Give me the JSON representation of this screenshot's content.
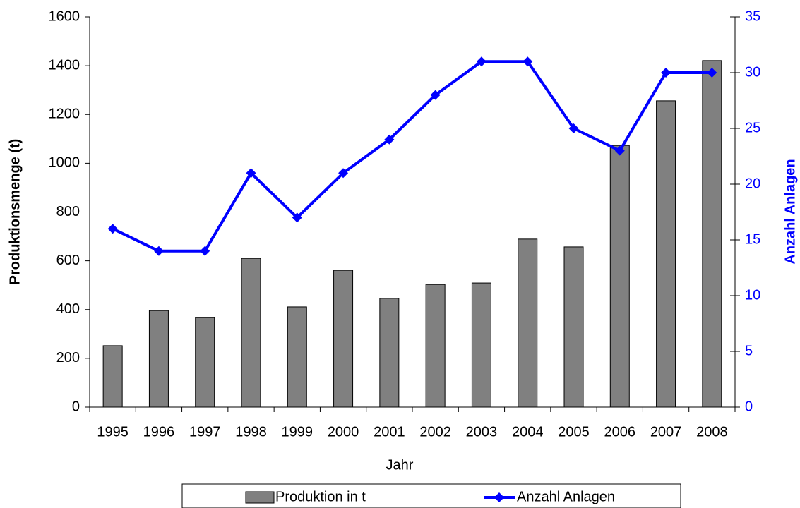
{
  "chart_data": {
    "type": "bar",
    "x_label": "Jahr",
    "y_label": "Produktionsmenge (t)",
    "y2_label": "Anzahl Anlagen",
    "categories": [
      "1995",
      "1996",
      "1997",
      "1998",
      "1999",
      "2000",
      "2001",
      "2002",
      "2003",
      "2004",
      "2005",
      "2006",
      "2007",
      "2008"
    ],
    "series": [
      {
        "name": "Produktion in t",
        "type": "bar",
        "color": "#808080",
        "values": [
          252,
          396,
          367,
          610,
          411,
          561,
          446,
          503,
          509,
          689,
          657,
          1073,
          1256,
          1421
        ]
      },
      {
        "name": "Anzahl Anlagen",
        "type": "line",
        "axis": "y2",
        "color": "#0000ff",
        "values": [
          16,
          14,
          14,
          21,
          17,
          21,
          24,
          28,
          31,
          31,
          25,
          23,
          30,
          30
        ]
      }
    ],
    "ylim": [
      0,
      1600
    ],
    "yticks": [
      0,
      200,
      400,
      600,
      800,
      1000,
      1200,
      1400,
      1600
    ],
    "y2lim": [
      0,
      35
    ],
    "y2ticks": [
      0,
      5,
      10,
      15,
      20,
      25,
      30,
      35
    ],
    "legend": "bottom"
  }
}
